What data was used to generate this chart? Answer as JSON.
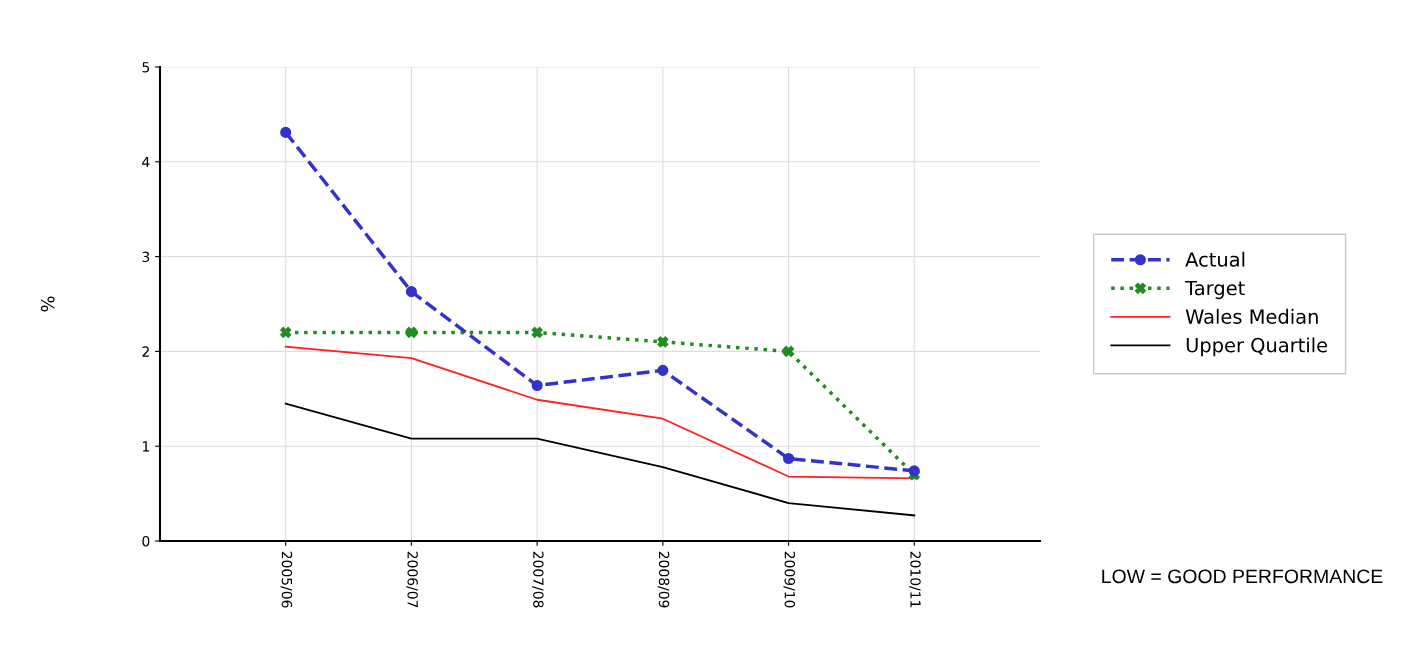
{
  "chart_data": {
    "type": "line",
    "ylabel": "%",
    "categories": [
      "2005/06",
      "2006/07",
      "2007/08",
      "2008/09",
      "2009/10",
      "2010/11"
    ],
    "series": [
      {
        "name": "Actual",
        "color": "#3333cc",
        "marker": "circle",
        "line_style": "dashed",
        "values": [
          4.31,
          2.63,
          1.64,
          1.8,
          0.87,
          0.74
        ]
      },
      {
        "name": "Target",
        "color": "#228b22",
        "marker": "cross",
        "line_style": "dotted",
        "values": [
          2.2,
          2.2,
          2.2,
          2.1,
          2.0,
          0.7
        ]
      },
      {
        "name": "Wales Median",
        "color": "#ff2020",
        "marker": "none",
        "line_style": "solid",
        "values": [
          2.05,
          1.93,
          1.49,
          1.29,
          0.68,
          0.66
        ]
      },
      {
        "name": "Upper Quartile",
        "color": "#000000",
        "marker": "none",
        "line_style": "solid",
        "values": [
          1.45,
          1.08,
          1.08,
          0.78,
          0.4,
          0.27
        ]
      }
    ],
    "ylim": [
      0,
      5
    ],
    "yticks": [
      0,
      1,
      2,
      3,
      4,
      5
    ],
    "grid": true,
    "legend": "right",
    "annotations": [
      "LOW = GOOD PERFORMANCE"
    ]
  }
}
